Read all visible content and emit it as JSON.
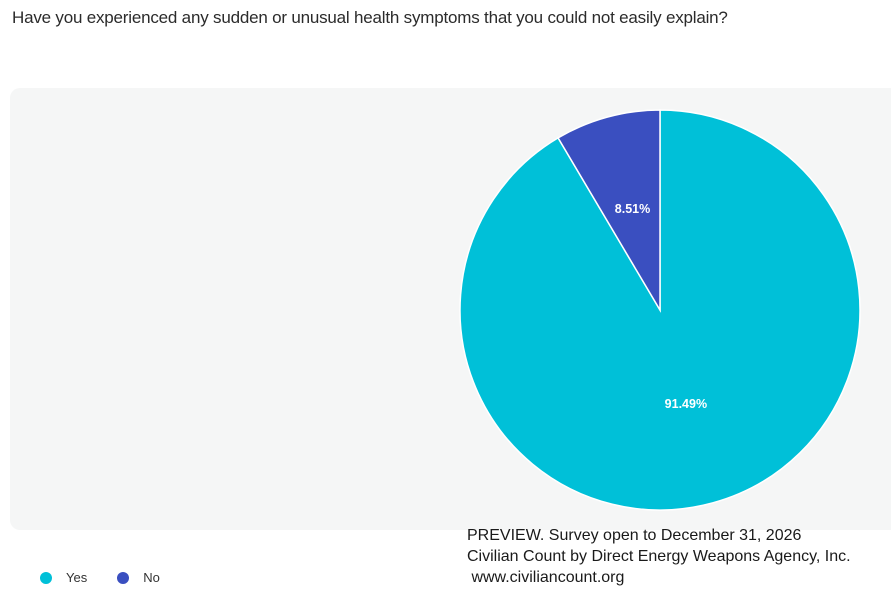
{
  "question": "Have you experienced any sudden or unusual health symptoms that you could not easily explain?",
  "chart_data": {
    "type": "pie",
    "categories": [
      "Yes",
      "No"
    ],
    "values": [
      91.49,
      8.51
    ],
    "labels": [
      "91.49%",
      "8.51%"
    ],
    "colors": [
      "#00c0d8",
      "#3a4fc0"
    ],
    "legend_position": "bottom-left"
  },
  "legend": {
    "items": [
      {
        "label": "Yes",
        "color": "#00c0d8"
      },
      {
        "label": "No",
        "color": "#3a4fc0"
      }
    ]
  },
  "watermark": {
    "line1": "PREVIEW. Survey open to December 31, 2026",
    "line2": "Civilian Count by Direct Energy Weapons Agency, Inc.",
    "line3": " www.civiliancount.org"
  }
}
